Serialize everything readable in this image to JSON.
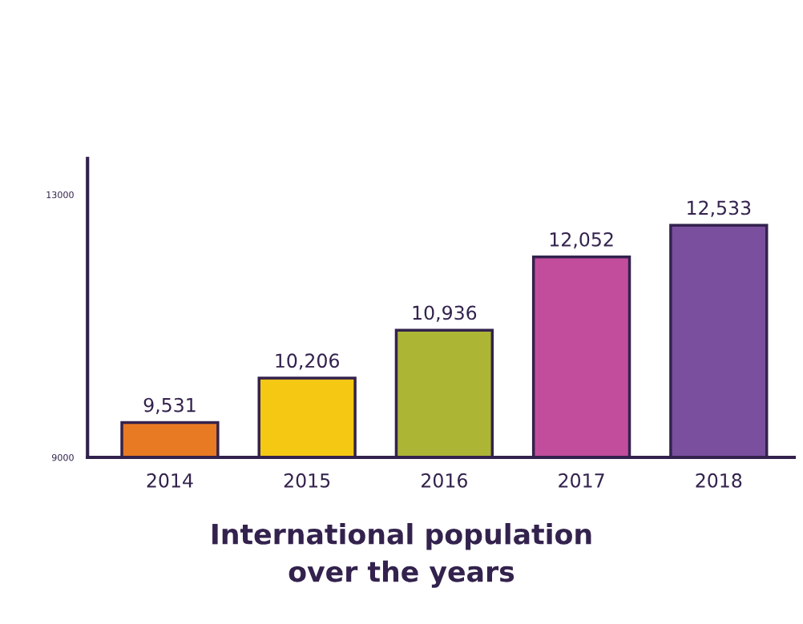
{
  "chart_data": {
    "type": "bar",
    "title": "International population\nover the years",
    "categories": [
      "2014",
      "2015",
      "2016",
      "2017",
      "2018"
    ],
    "values": [
      9531,
      10206,
      10936,
      12052,
      12533
    ],
    "colors": [
      "#e97a24",
      "#f5c814",
      "#adb535",
      "#c24d9c",
      "#7a4f9e"
    ],
    "value_labels": [
      "9,531",
      "10,206",
      "10,936",
      "12,052",
      "12,533"
    ],
    "ylim": [
      9000,
      13550
    ],
    "yticks": [
      9000,
      13000
    ],
    "grid": false,
    "legend": false
  }
}
